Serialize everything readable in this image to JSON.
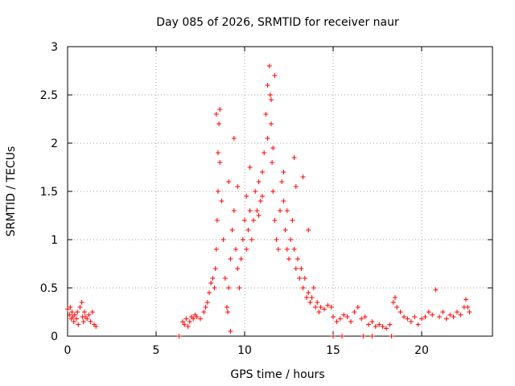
{
  "chart_data": {
    "type": "scatter",
    "title": "Day 085 of 2026, SRMTID for receiver naur",
    "xlabel": "GPS time / hours",
    "ylabel": "SRMTID / TECUs",
    "xlim": [
      0,
      24
    ],
    "ylim": [
      0,
      3
    ],
    "xticks": [
      0,
      5,
      10,
      15,
      20
    ],
    "yticks": [
      0,
      0.5,
      1,
      1.5,
      2,
      2.5,
      3
    ],
    "xtick_labels": [
      "0",
      "5",
      "10",
      "15",
      "20"
    ],
    "ytick_labels": [
      "0",
      "0.5",
      "1",
      "1.5",
      "2",
      "2.5",
      "3"
    ],
    "grid": true,
    "marker": "+",
    "color": "#ff0000",
    "series": [
      {
        "name": "SRMTID",
        "x": [
          0.0,
          0.1,
          0.15,
          0.2,
          0.25,
          0.3,
          0.35,
          0.4,
          0.5,
          0.55,
          0.6,
          0.7,
          0.8,
          0.85,
          0.9,
          0.95,
          1.0,
          1.1,
          1.2,
          1.3,
          1.4,
          1.5,
          1.6,
          6.5,
          6.6,
          6.7,
          6.8,
          6.9,
          7.0,
          7.1,
          7.2,
          7.3,
          7.5,
          7.7,
          7.8,
          7.9,
          8.0,
          8.1,
          8.2,
          8.3,
          8.35,
          8.4,
          8.45,
          8.5,
          8.55,
          8.6,
          8.7,
          8.8,
          8.9,
          9.0,
          9.05,
          9.1,
          9.2,
          9.3,
          9.4,
          9.5,
          9.6,
          9.7,
          9.8,
          9.9,
          10.0,
          10.1,
          10.2,
          10.3,
          10.4,
          10.5,
          10.6,
          10.7,
          10.8,
          10.9,
          11.0,
          11.1,
          11.2,
          11.3,
          11.4,
          11.45,
          11.5,
          11.55,
          11.6,
          11.7,
          11.8,
          11.9,
          12.0,
          12.1,
          12.2,
          12.3,
          12.4,
          12.5,
          12.6,
          12.7,
          12.8,
          12.9,
          13.0,
          13.1,
          13.2,
          13.3,
          13.4,
          13.5,
          13.6,
          13.7,
          13.8,
          13.9,
          14.0,
          14.1,
          14.2,
          14.3,
          14.5,
          14.7,
          14.9,
          15.0,
          15.2,
          15.4,
          15.6,
          15.8,
          16.0,
          16.2,
          16.4,
          16.6,
          16.8,
          17.0,
          17.2,
          17.4,
          17.6,
          17.8,
          18.0,
          18.2,
          18.4,
          18.5,
          18.6,
          18.8,
          19.0,
          19.2,
          19.4,
          19.6,
          19.8,
          20.0,
          20.2,
          20.4,
          20.6,
          20.8,
          21.0,
          21.2,
          21.4,
          21.6,
          21.8,
          22.0,
          22.2,
          22.4,
          22.5,
          22.6,
          22.7,
          8.6,
          9.4,
          10.3,
          11.0,
          11.3,
          11.5,
          11.7,
          12.2,
          12.8,
          13.3,
          8.4,
          8.5,
          9.1,
          9.6,
          10.1,
          10.8,
          11.6,
          12.4,
          12.9,
          13.6,
          6.3,
          9.2,
          15.0,
          15.5,
          16.7,
          17.2,
          18.3
        ],
        "y": [
          0.28,
          0.22,
          0.3,
          0.18,
          0.25,
          0.2,
          0.15,
          0.22,
          0.18,
          0.25,
          0.12,
          0.3,
          0.35,
          0.2,
          0.15,
          0.25,
          0.2,
          0.18,
          0.22,
          0.15,
          0.25,
          0.12,
          0.1,
          0.15,
          0.12,
          0.18,
          0.1,
          0.15,
          0.2,
          0.18,
          0.22,
          0.2,
          0.18,
          0.25,
          0.3,
          0.35,
          0.45,
          0.55,
          0.6,
          0.5,
          0.7,
          0.9,
          1.2,
          1.5,
          2.2,
          1.8,
          1.4,
          1.0,
          0.6,
          0.3,
          0.25,
          0.5,
          0.8,
          1.1,
          1.3,
          0.9,
          0.7,
          0.5,
          0.8,
          1.0,
          1.2,
          0.9,
          1.1,
          1.3,
          1.0,
          1.2,
          1.5,
          1.3,
          1.6,
          1.4,
          1.7,
          1.9,
          2.3,
          2.6,
          2.8,
          2.5,
          2.2,
          1.8,
          1.5,
          1.2,
          1.0,
          0.9,
          1.3,
          1.6,
          1.4,
          1.1,
          0.9,
          0.8,
          1.0,
          1.2,
          0.9,
          0.7,
          0.8,
          0.6,
          0.7,
          0.5,
          0.6,
          0.4,
          0.45,
          0.35,
          0.4,
          0.5,
          0.3,
          0.35,
          0.25,
          0.3,
          0.28,
          0.32,
          0.3,
          0.2,
          0.15,
          0.18,
          0.22,
          0.2,
          0.15,
          0.25,
          0.3,
          0.18,
          0.2,
          0.12,
          0.15,
          0.1,
          0.12,
          0.1,
          0.08,
          0.12,
          0.35,
          0.4,
          0.3,
          0.25,
          0.2,
          0.18,
          0.15,
          0.2,
          0.12,
          0.18,
          0.2,
          0.25,
          0.22,
          0.48,
          0.2,
          0.25,
          0.18,
          0.22,
          0.2,
          0.25,
          0.22,
          0.3,
          0.38,
          0.3,
          0.25,
          2.35,
          2.05,
          1.75,
          1.45,
          2.05,
          2.45,
          2.7,
          1.7,
          1.85,
          1.65,
          2.3,
          1.9,
          1.6,
          1.55,
          1.45,
          1.25,
          1.95,
          1.3,
          1.55,
          1.1,
          0.0,
          0.05,
          0.0,
          0.0,
          0.0,
          0.0,
          0.0
        ]
      }
    ]
  }
}
